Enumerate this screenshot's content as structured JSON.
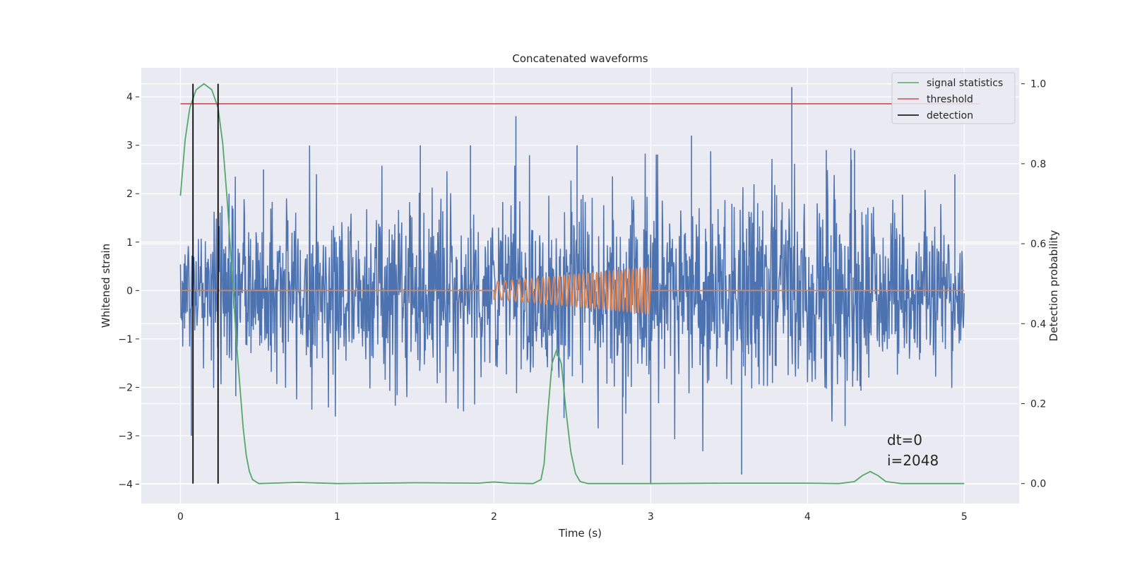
{
  "chart_data": {
    "type": "line",
    "title": "Concatenated waveforms",
    "xlabel": "Time (s)",
    "ylabel_left": "Whitened strain",
    "ylabel_right": "Detection probability",
    "xlim": [
      -0.25,
      5.35
    ],
    "ylim_left": [
      -4.4,
      4.6
    ],
    "ylim_right": [
      -0.05,
      1.04
    ],
    "x_ticks": [
      0,
      1,
      2,
      3,
      4,
      5
    ],
    "y_ticks_left": [
      -4,
      -3,
      -2,
      -1,
      0,
      1,
      2,
      3,
      4
    ],
    "y_ticks_right": [
      0.0,
      0.2,
      0.4,
      0.6,
      0.8,
      1.0
    ],
    "grid": true,
    "legend_position": "top-right",
    "annotations": [
      "dt=0",
      "i=2048"
    ],
    "colors": {
      "strain": "#4c72b0",
      "injected": "#dd8452",
      "signal": "#55a868",
      "threshold": "#c44e52",
      "detection": "#000000",
      "background": "#eaeaf2"
    },
    "series": [
      {
        "name": "",
        "axis": "left",
        "kind": "noise",
        "x_range": [
          0,
          5
        ],
        "envelope": {
          "x": [
            0,
            0.3,
            0.5,
            1,
            1.5,
            2,
            2.5,
            3,
            3.5,
            4,
            4.5,
            5
          ],
          "max": [
            1.9,
            2.9,
            3.0,
            3.2,
            3.3,
            3.3,
            3.2,
            2.8,
            2.9,
            4.2,
            3.0,
            2.0
          ],
          "min": [
            -1.7,
            -2.9,
            -2.7,
            -2.6,
            -2.7,
            -2.7,
            -3.2,
            -4.0,
            -3.1,
            -3.0,
            -2.8,
            -2.2
          ]
        },
        "spikes_high": [
          [
            0.08,
            1.5
          ],
          [
            0.31,
            2.0
          ],
          [
            0.53,
            2.5
          ],
          [
            1.53,
            3.0
          ],
          [
            1.85,
            3.0
          ],
          [
            2.14,
            3.6
          ],
          [
            2.53,
            3.0
          ],
          [
            3.26,
            3.2
          ],
          [
            3.9,
            4.2
          ],
          [
            4.12,
            2.9
          ],
          [
            4.28,
            2.7
          ],
          [
            4.3,
            2.9
          ],
          [
            4.94,
            2.4
          ]
        ],
        "spikes_low": [
          [
            0.07,
            -3.0
          ],
          [
            2.82,
            -3.6
          ],
          [
            3.0,
            -4.0
          ],
          [
            3.58,
            -3.8
          ],
          [
            4.24,
            -2.8
          ]
        ]
      },
      {
        "name": "",
        "axis": "left",
        "kind": "injected-chirp",
        "x_range": [
          0,
          5
        ],
        "chirp_range": [
          2.0,
          3.0
        ],
        "amplitude_start": 0.18,
        "amplitude_end": 0.47,
        "frequency_start": 20,
        "frequency_end": 45
      },
      {
        "name": "signal statistics",
        "axis": "right",
        "x": [
          0,
          0.03,
          0.06,
          0.1,
          0.15,
          0.2,
          0.24,
          0.27,
          0.3,
          0.33,
          0.36,
          0.4,
          0.42,
          0.44,
          0.46,
          0.5,
          0.75,
          1.0,
          1.5,
          1.9,
          2.0,
          2.1,
          2.25,
          2.3,
          2.32,
          2.34,
          2.37,
          2.4,
          2.43,
          2.46,
          2.49,
          2.52,
          2.55,
          2.6,
          3.0,
          3.5,
          4.0,
          4.2,
          4.3,
          4.35,
          4.4,
          4.45,
          4.5,
          4.6,
          5.0
        ],
        "y": [
          0.72,
          0.86,
          0.94,
          0.985,
          1.0,
          0.985,
          0.94,
          0.85,
          0.7,
          0.52,
          0.34,
          0.14,
          0.07,
          0.03,
          0.01,
          0.0,
          0.003,
          0.0,
          0.002,
          0.001,
          0.004,
          0.001,
          0.0,
          0.01,
          0.05,
          0.16,
          0.3,
          0.335,
          0.3,
          0.18,
          0.08,
          0.025,
          0.005,
          0.0,
          0.0,
          0.001,
          0.001,
          0.0,
          0.005,
          0.02,
          0.03,
          0.02,
          0.005,
          0.0,
          0.0
        ]
      },
      {
        "name": "threshold",
        "axis": "right",
        "x": [
          0,
          5.1
        ],
        "y": [
          0.95,
          0.95
        ]
      },
      {
        "name": "detection",
        "axis": "right",
        "x": [
          0.08,
          0.24
        ],
        "kind": "vertical-lines"
      }
    ],
    "legend": [
      "signal statistics",
      "threshold",
      "detection"
    ]
  }
}
